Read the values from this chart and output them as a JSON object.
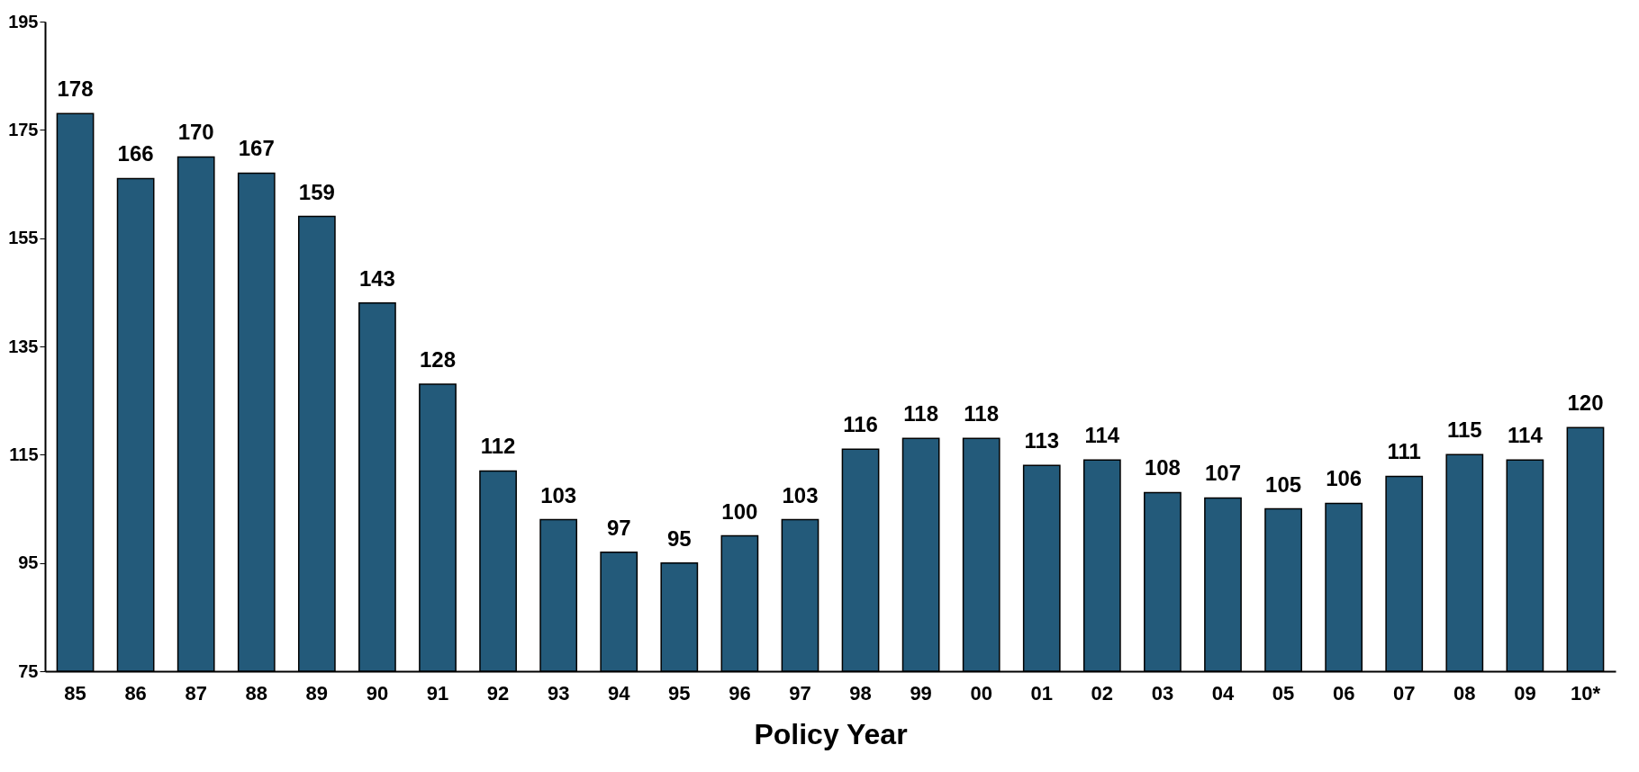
{
  "chart_data": {
    "type": "bar",
    "xlabel": "Policy Year",
    "categories": [
      "85",
      "86",
      "87",
      "88",
      "89",
      "90",
      "91",
      "92",
      "93",
      "94",
      "95",
      "96",
      "97",
      "98",
      "99",
      "00",
      "01",
      "02",
      "03",
      "04",
      "05",
      "06",
      "07",
      "08",
      "09",
      "10*"
    ],
    "values": [
      178,
      166,
      170,
      167,
      159,
      143,
      128,
      112,
      103,
      97,
      95,
      100,
      103,
      116,
      118,
      118,
      113,
      114,
      108,
      107,
      105,
      106,
      111,
      115,
      114,
      120
    ],
    "color": "#235a7a",
    "ylim": [
      75,
      195
    ],
    "yticks": [
      75,
      95,
      115,
      135,
      155,
      175,
      195
    ],
    "data_labels": true
  }
}
